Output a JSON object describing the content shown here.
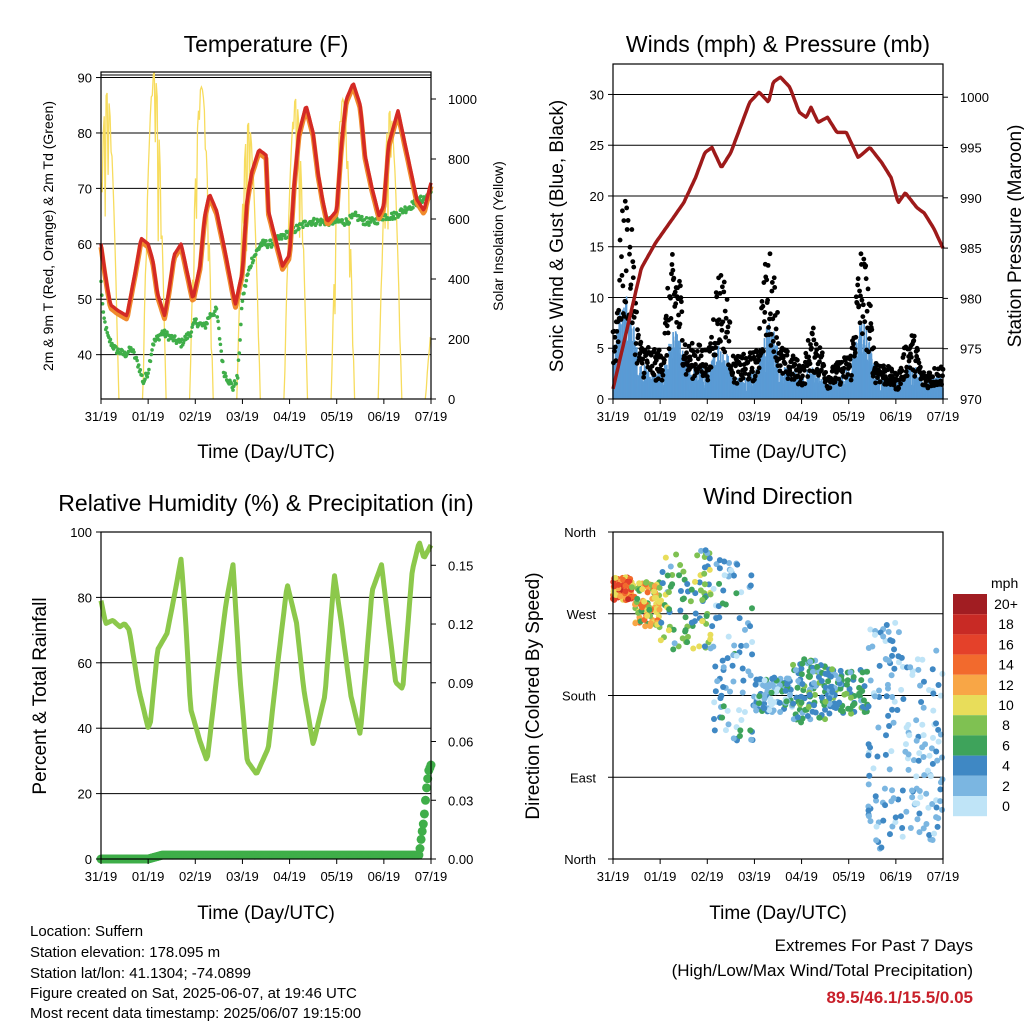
{
  "panels": {
    "temperature": {
      "title": "Temperature (F)",
      "xlabel": "Time (Day/UTC)",
      "ylabel_left": "2m & 9m T (Red, Orange) & 2m Td (Green)",
      "ylabel_right": "Solar Insolation (Yellow)"
    },
    "winds": {
      "title": "Winds (mph) & Pressure (mb)",
      "xlabel": "Time (Day/UTC)",
      "ylabel_left": "Sonic Wind & Gust (Blue, Black)",
      "ylabel_right": "Station Pressure (Maroon)"
    },
    "humidity": {
      "title": "Relative Humidity (%) & Precipitation (in)",
      "xlabel": "Time (Day/UTC)",
      "ylabel_left": "Percent & Total Rainfall"
    },
    "direction": {
      "title": "Wind Direction",
      "xlabel": "Time (Day/UTC)",
      "ylabel_left": "Direction (Colored By Speed)"
    }
  },
  "legend": {
    "unit": "mph",
    "labels": [
      "20+",
      "18",
      "16",
      "14",
      "12",
      "10",
      "8",
      "6",
      "4",
      "2",
      "0"
    ],
    "colors": [
      "#a11d22",
      "#c82a25",
      "#e4412a",
      "#f26a2d",
      "#f8a646",
      "#e8dd5a",
      "#7fc152",
      "#3ea35b",
      "#3f88c4",
      "#7bb6e1",
      "#bfe4f7"
    ]
  },
  "footer": {
    "location": "Location: Suffern",
    "elevation": "Station elevation: 178.095 m",
    "latlon": "Station lat/lon: 41.1304; -74.0899",
    "created": "Figure created on Sat, 2025-06-07, at 19:46 UTC",
    "recent": "Most recent data timestamp: 2025/06/07 19:15:00"
  },
  "extremes": {
    "title": "Extremes For Past 7 Days",
    "subtitle": "(High/Low/Max Wind/Total Precipitation)",
    "values": "89.5/46.1/15.5/0.05"
  },
  "colors": {
    "temp_2m": "#d42a25",
    "temp_9m": "#f08a2c",
    "dewpoint": "#3fae49",
    "solar": "#f7dc5e",
    "wind": "#5a9bd5",
    "gust": "#000000",
    "pressure": "#9e1a1a",
    "rh": "#8cc84b",
    "precip": "#3fae49"
  },
  "chart_data": [
    {
      "type": "line",
      "panel": "temperature",
      "x_ticks": [
        "31/19",
        "01/19",
        "02/19",
        "03/19",
        "04/19",
        "05/19",
        "06/19",
        "07/19"
      ],
      "xlim": [
        0,
        7
      ],
      "ylim": [
        32,
        91
      ],
      "y_ticks": [
        40,
        50,
        60,
        70,
        80,
        90
      ],
      "y2lim": [
        0,
        1090
      ],
      "y2_ticks": [
        0,
        200,
        400,
        600,
        800,
        1000
      ],
      "grid": "horizontal",
      "series": [
        {
          "role": "temp",
          "x": [
            0,
            0.1,
            0.2,
            0.35,
            0.55,
            0.75,
            0.85,
            1.0,
            1.1,
            1.2,
            1.35,
            1.45,
            1.55,
            1.7,
            1.95,
            2.1,
            2.2,
            2.3,
            2.45,
            2.6,
            2.85,
            3.0,
            3.1,
            3.2,
            3.35,
            3.5,
            3.55,
            3.7,
            3.85,
            4.0,
            4.1,
            4.2,
            4.35,
            4.5,
            4.6,
            4.7,
            4.8,
            5.0,
            5.1,
            5.2,
            5.35,
            5.5,
            5.6,
            5.75,
            5.9,
            6.0,
            6.1,
            6.3,
            6.5,
            6.7,
            6.85,
            7.0
          ],
          "y": [
            60,
            54,
            49,
            48,
            47,
            56,
            61,
            60,
            57,
            51,
            47,
            52,
            58,
            60,
            50,
            56,
            65,
            69,
            66,
            60,
            49,
            55,
            68,
            73,
            77,
            76,
            66,
            61,
            56,
            58,
            71,
            80,
            85,
            80,
            73,
            68,
            64,
            66,
            78,
            86,
            89,
            85,
            76,
            70,
            65,
            67,
            78,
            84,
            76,
            68,
            66,
            71
          ]
        },
        {
          "role": "dewpoint",
          "x": [
            0,
            0.05,
            0.15,
            0.3,
            0.5,
            0.65,
            0.8,
            0.9,
            1.0,
            1.1,
            1.3,
            1.5,
            1.7,
            1.9,
            2.0,
            2.2,
            2.3,
            2.45,
            2.6,
            2.8,
            2.9,
            3.0,
            3.1,
            3.2,
            3.4,
            3.6,
            3.8,
            4.0,
            4.2,
            4.4,
            4.6,
            4.8,
            5.0,
            5.2,
            5.4,
            5.6,
            5.8,
            6.0,
            6.2,
            6.4,
            6.6,
            6.8,
            7.0
          ],
          "y": [
            53,
            47,
            43,
            41,
            40,
            41,
            38,
            35,
            37,
            42,
            44,
            43,
            42,
            44,
            46,
            45,
            47,
            48,
            37,
            34,
            36,
            50,
            54,
            57,
            60,
            60,
            61,
            62,
            63,
            64,
            64,
            64,
            64,
            64,
            65,
            64,
            64,
            65,
            65,
            66,
            67,
            68,
            69
          ]
        },
        {
          "role": "solar",
          "days": [
            0,
            1,
            2,
            3,
            4,
            5,
            6,
            7
          ],
          "peaks": [
            1020,
            1090,
            1040,
            920,
            1000,
            1000,
            960,
            340
          ]
        }
      ]
    },
    {
      "type": "scatter",
      "panel": "winds",
      "x_ticks": [
        "31/19",
        "01/19",
        "02/19",
        "03/19",
        "04/19",
        "05/19",
        "06/19",
        "07/19"
      ],
      "xlim": [
        0,
        7
      ],
      "ylim": [
        0,
        33
      ],
      "y_ticks": [
        0,
        5,
        10,
        15,
        20,
        25,
        30
      ],
      "y2lim": [
        970,
        1003.3
      ],
      "y2_ticks": [
        970,
        975,
        980,
        985,
        990,
        995,
        1000
      ],
      "grid": "horizontal",
      "series": [
        {
          "role": "pressure",
          "x": [
            0,
            0.3,
            0.6,
            0.9,
            1.2,
            1.5,
            1.75,
            1.95,
            2.1,
            2.3,
            2.5,
            2.7,
            2.9,
            3.1,
            3.3,
            3.4,
            3.55,
            3.75,
            3.95,
            4.1,
            4.2,
            4.35,
            4.55,
            4.75,
            4.95,
            5.2,
            5.45,
            5.7,
            5.9,
            6.05,
            6.2,
            6.45,
            6.6,
            6.8,
            7.0
          ],
          "y": [
            971,
            977,
            983,
            985.5,
            987.5,
            989.5,
            992,
            994.5,
            995,
            993,
            994.5,
            997,
            999.5,
            1000.5,
            999.5,
            1001.5,
            1002,
            1001,
            998.5,
            998,
            999,
            997.5,
            998,
            996.5,
            996.5,
            994,
            995,
            993.5,
            992,
            989.5,
            990.5,
            989,
            988.5,
            987,
            985
          ]
        },
        {
          "role": "wind",
          "levels": [
            7.5,
            3.5,
            4.5,
            3,
            5,
            1.5,
            5,
            2,
            3
          ]
        },
        {
          "role": "gust",
          "levels": [
            12,
            7,
            8,
            6,
            8,
            3,
            8,
            3,
            5
          ]
        }
      ]
    },
    {
      "type": "line",
      "panel": "humidity",
      "x_ticks": [
        "31/19",
        "01/19",
        "02/19",
        "03/19",
        "04/19",
        "05/19",
        "06/19",
        "07/19"
      ],
      "xlim": [
        0,
        7
      ],
      "ylim": [
        0,
        100
      ],
      "y_ticks": [
        0,
        20,
        40,
        60,
        80,
        100
      ],
      "y2lim": [
        0,
        0.167
      ],
      "y2_ticks": [
        0.0,
        0.03,
        0.06,
        0.09,
        0.12,
        0.15
      ],
      "grid": "horizontal",
      "series": [
        {
          "role": "rh",
          "x": [
            0,
            0.1,
            0.25,
            0.4,
            0.5,
            0.6,
            0.8,
            1.0,
            1.05,
            1.2,
            1.4,
            1.55,
            1.7,
            1.8,
            1.9,
            2.1,
            2.25,
            2.45,
            2.65,
            2.8,
            2.95,
            3.1,
            3.3,
            3.55,
            3.75,
            3.95,
            4.15,
            4.3,
            4.5,
            4.75,
            4.95,
            5.1,
            5.3,
            5.5,
            5.75,
            5.95,
            6.1,
            6.25,
            6.4,
            6.6,
            6.75,
            6.85,
            7.0
          ],
          "y": [
            79,
            72,
            73,
            71,
            72,
            70,
            52,
            40,
            42,
            64,
            69,
            80,
            92,
            72,
            46,
            36,
            30,
            55,
            78,
            90,
            55,
            30,
            26,
            34,
            60,
            84,
            72,
            52,
            35,
            50,
            87,
            72,
            50,
            38,
            82,
            90,
            72,
            54,
            52,
            88,
            97,
            92,
            96
          ]
        },
        {
          "role": "precip",
          "x": [
            0,
            1.0,
            1.3,
            6.6,
            6.75,
            6.8,
            6.85,
            6.9,
            6.95,
            7.0
          ],
          "y": [
            0,
            0,
            0.002,
            0.002,
            0.002,
            0.012,
            0.02,
            0.035,
            0.045,
            0.048
          ]
        }
      ]
    },
    {
      "type": "scatter",
      "panel": "direction",
      "x_ticks": [
        "31/19",
        "01/19",
        "02/19",
        "03/19",
        "04/19",
        "05/19",
        "06/19",
        "07/19"
      ],
      "xlim": [
        0,
        7
      ],
      "y_ticks": [
        "North",
        "West",
        "South",
        "East",
        "North"
      ],
      "ylim": [
        0,
        360
      ],
      "grid": "horizontal",
      "series": [
        {
          "role": "direction",
          "clusters": [
            {
              "x": [
                0,
                0.4
              ],
              "dir": [
                285,
                310
              ],
              "speed": [
                10,
                18
              ]
            },
            {
              "x": [
                0.4,
                1.0
              ],
              "dir": [
                255,
                305
              ],
              "speed": [
                6,
                14
              ]
            },
            {
              "x": [
                1.0,
                2.1
              ],
              "dir": [
                230,
                340
              ],
              "speed": [
                2,
                10
              ]
            },
            {
              "x": [
                2.1,
                3.0
              ],
              "dir": [
                130,
                330
              ],
              "speed": [
                0,
                6
              ]
            },
            {
              "x": [
                3.0,
                3.8
              ],
              "dir": [
                160,
                200
              ],
              "speed": [
                0,
                6
              ]
            },
            {
              "x": [
                3.8,
                4.5
              ],
              "dir": [
                150,
                220
              ],
              "speed": [
                2,
                8
              ]
            },
            {
              "x": [
                4.5,
                5.4
              ],
              "dir": [
                160,
                210
              ],
              "speed": [
                2,
                8
              ]
            },
            {
              "x": [
                5.4,
                6.2
              ],
              "dir": [
                10,
                260
              ],
              "speed": [
                0,
                5
              ]
            },
            {
              "x": [
                6.2,
                7.0
              ],
              "dir": [
                20,
                230
              ],
              "speed": [
                0,
                4
              ]
            }
          ]
        }
      ]
    }
  ]
}
